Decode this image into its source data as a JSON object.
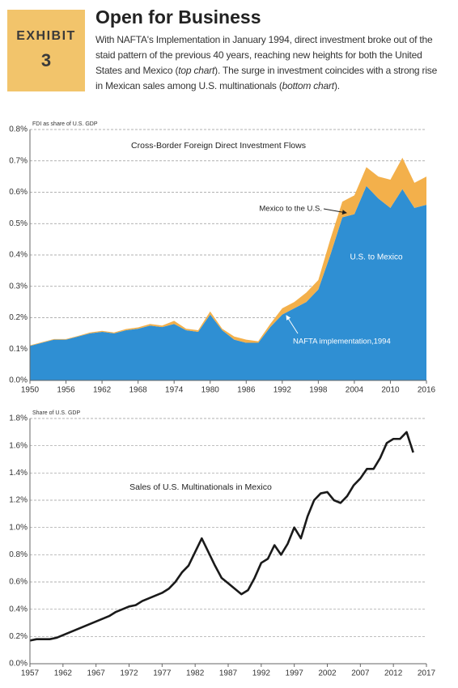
{
  "header": {
    "exhibit": "EXHIBIT",
    "number": "3",
    "title": "Open for Business",
    "body": [
      "With NAFTA's Implementation in January 1994, direct investment broke out of the staid pattern of the previous 40 years, reaching new heights for both the United States and Mexico (",
      "top chart",
      "). The surge in investment coincides with a strong rise in Mexican sales among U.S. multinationals (",
      "bottom chart",
      ")."
    ]
  },
  "chart_data": [
    {
      "type": "area",
      "stacked": true,
      "title": "Cross-Border Foreign Direct Investment Flows",
      "y_label": "FDI as share of U.S. GDP",
      "x": [
        1950,
        1952,
        1954,
        1956,
        1958,
        1960,
        1962,
        1964,
        1966,
        1968,
        1970,
        1972,
        1974,
        1976,
        1978,
        1980,
        1982,
        1984,
        1986,
        1988,
        1990,
        1992,
        1994,
        1996,
        1998,
        2000,
        2002,
        2004,
        2006,
        2008,
        2010,
        2012,
        2014,
        2016
      ],
      "series": [
        {
          "name": "U.S. to Mexico",
          "color": "#2f8fd3",
          "values": [
            0.11,
            0.12,
            0.13,
            0.13,
            0.14,
            0.15,
            0.155,
            0.15,
            0.16,
            0.165,
            0.175,
            0.17,
            0.18,
            0.16,
            0.155,
            0.21,
            0.16,
            0.13,
            0.12,
            0.12,
            0.17,
            0.21,
            0.23,
            0.25,
            0.29,
            0.4,
            0.52,
            0.53,
            0.62,
            0.58,
            0.55,
            0.61,
            0.55,
            0.56
          ]
        },
        {
          "name": "Mexico to the U.S.",
          "color": "#f3b04b",
          "values": [
            0.002,
            0.002,
            0.002,
            0.002,
            0.002,
            0.003,
            0.003,
            0.003,
            0.004,
            0.004,
            0.005,
            0.005,
            0.01,
            0.005,
            0.005,
            0.01,
            0.005,
            0.01,
            0.01,
            0.005,
            0.01,
            0.02,
            0.02,
            0.03,
            0.03,
            0.05,
            0.05,
            0.06,
            0.06,
            0.07,
            0.09,
            0.1,
            0.08,
            0.09
          ]
        }
      ],
      "annotations": [
        "NAFTA implementation,1994"
      ],
      "xlim": [
        1950,
        2016
      ],
      "xticks": [
        1950,
        1956,
        1962,
        1968,
        1974,
        1980,
        1986,
        1992,
        1998,
        2004,
        2010,
        2016
      ],
      "ylim": [
        0,
        0.8
      ],
      "yticks": [
        {
          "value": 0,
          "label": "0.0%"
        },
        {
          "value": 0.1,
          "label": "0.1%"
        },
        {
          "value": 0.2,
          "label": "0.2%"
        },
        {
          "value": 0.3,
          "label": "0.3%"
        },
        {
          "value": 0.4,
          "label": "0.4%"
        },
        {
          "value": 0.5,
          "label": "0.5%"
        },
        {
          "value": 0.6,
          "label": "0.6%"
        },
        {
          "value": 0.7,
          "label": "0.7%"
        },
        {
          "value": 0.8,
          "label": "0.8%"
        }
      ],
      "grid": true
    },
    {
      "type": "line",
      "title": "Sales of U.S. Multinationals in Mexico",
      "y_label": "Share of U.S. GDP",
      "color": "#1a1a1a",
      "x": [
        1957,
        1958,
        1959,
        1960,
        1961,
        1962,
        1963,
        1964,
        1965,
        1966,
        1967,
        1968,
        1969,
        1970,
        1971,
        1972,
        1973,
        1974,
        1975,
        1976,
        1977,
        1978,
        1979,
        1980,
        1981,
        1982,
        1983,
        1984,
        1985,
        1986,
        1987,
        1988,
        1989,
        1990,
        1991,
        1992,
        1993,
        1994,
        1995,
        1996,
        1997,
        1998,
        1999,
        2000,
        2001,
        2002,
        2003,
        2004,
        2005,
        2006,
        2007,
        2008,
        2009,
        2010,
        2011,
        2012,
        2013,
        2014,
        2015
      ],
      "values": [
        0.17,
        0.18,
        0.18,
        0.18,
        0.19,
        0.21,
        0.23,
        0.25,
        0.27,
        0.29,
        0.31,
        0.33,
        0.35,
        0.38,
        0.4,
        0.42,
        0.43,
        0.46,
        0.48,
        0.5,
        0.52,
        0.55,
        0.6,
        0.67,
        0.72,
        0.82,
        0.92,
        0.82,
        0.72,
        0.63,
        0.59,
        0.55,
        0.51,
        0.54,
        0.63,
        0.74,
        0.77,
        0.87,
        0.8,
        0.88,
        1.0,
        0.92,
        1.08,
        1.2,
        1.25,
        1.26,
        1.2,
        1.18,
        1.23,
        1.31,
        1.36,
        1.43,
        1.43,
        1.51,
        1.62,
        1.65,
        1.65,
        1.7,
        1.55
      ],
      "xlim": [
        1957,
        2017
      ],
      "xticks": [
        1957,
        1962,
        1967,
        1972,
        1977,
        1982,
        1987,
        1992,
        1997,
        2002,
        2007,
        2012,
        2017
      ],
      "ylim": [
        0,
        1.8
      ],
      "yticks": [
        {
          "value": 0,
          "label": "0.0%"
        },
        {
          "value": 0.2,
          "label": "0.2%"
        },
        {
          "value": 0.4,
          "label": "0.4%"
        },
        {
          "value": 0.6,
          "label": "0.6%"
        },
        {
          "value": 0.8,
          "label": "0.8%"
        },
        {
          "value": 1,
          "label": "1.0%"
        },
        {
          "value": 1.2,
          "label": "1.2%"
        },
        {
          "value": 1.4,
          "label": "1.4%"
        },
        {
          "value": 1.6,
          "label": "1.6%"
        },
        {
          "value": 1.8,
          "label": "1.8%"
        }
      ],
      "grid": true
    }
  ]
}
